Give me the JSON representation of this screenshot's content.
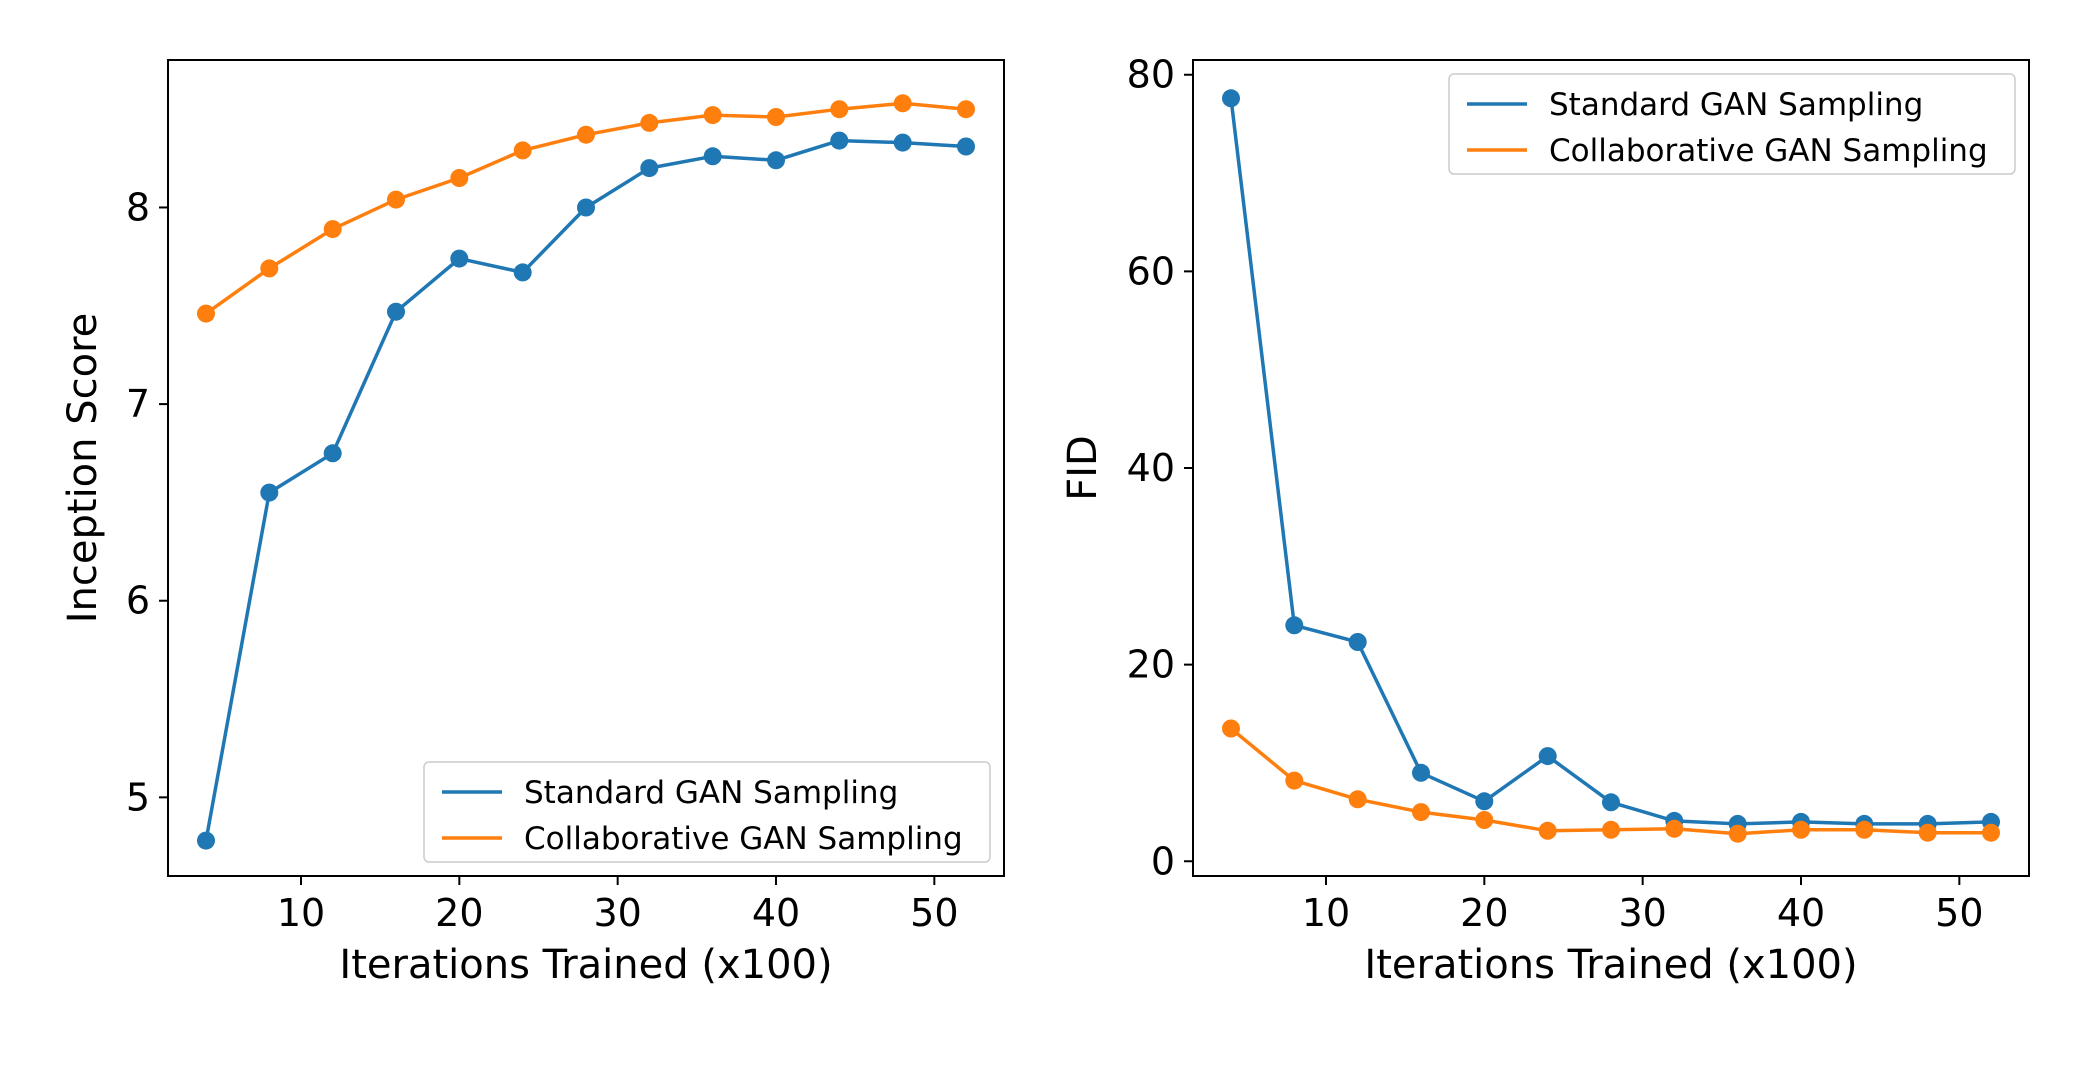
{
  "chart_data": [
    {
      "type": "line",
      "xlabel": "Iterations Trained (x100)",
      "ylabel": "Inception Score",
      "xlim": [
        1.6,
        54.4
      ],
      "ylim": [
        4.6,
        8.75
      ],
      "xticks": [
        10,
        20,
        30,
        40,
        50
      ],
      "yticks": [
        5,
        6,
        7,
        8
      ],
      "grid": false,
      "legend_position": "lower-right",
      "x": [
        4,
        8,
        12,
        16,
        20,
        24,
        28,
        32,
        36,
        40,
        44,
        48,
        52
      ],
      "series": [
        {
          "name": "Standard GAN Sampling",
          "color": "#1f77b4",
          "values": [
            4.78,
            6.55,
            6.75,
            7.47,
            7.74,
            7.67,
            8.0,
            8.2,
            8.26,
            8.24,
            8.34,
            8.33,
            8.31
          ]
        },
        {
          "name": "Collaborative GAN Sampling",
          "color": "#ff7f0e",
          "values": [
            7.46,
            7.69,
            7.89,
            8.04,
            8.15,
            8.29,
            8.37,
            8.43,
            8.47,
            8.46,
            8.5,
            8.53,
            8.5
          ]
        }
      ]
    },
    {
      "type": "line",
      "xlabel": "Iterations Trained (x100)",
      "ylabel": "FID",
      "xlim": [
        1.6,
        54.4
      ],
      "ylim": [
        -1.5,
        81.5
      ],
      "xticks": [
        10,
        20,
        30,
        40,
        50
      ],
      "yticks": [
        0,
        20,
        40,
        60,
        80
      ],
      "grid": false,
      "legend_position": "upper-right",
      "x": [
        4,
        8,
        12,
        16,
        20,
        24,
        28,
        32,
        36,
        40,
        44,
        48,
        52
      ],
      "series": [
        {
          "name": "Standard GAN Sampling",
          "color": "#1f77b4",
          "values": [
            77.6,
            24.0,
            22.3,
            9.0,
            6.1,
            10.7,
            6.0,
            4.1,
            3.8,
            4.0,
            3.8,
            3.8,
            4.0
          ]
        },
        {
          "name": "Collaborative GAN Sampling",
          "color": "#ff7f0e",
          "values": [
            13.5,
            8.2,
            6.3,
            5.0,
            4.2,
            3.1,
            3.2,
            3.3,
            2.8,
            3.2,
            3.2,
            2.9,
            2.9
          ]
        }
      ]
    }
  ]
}
